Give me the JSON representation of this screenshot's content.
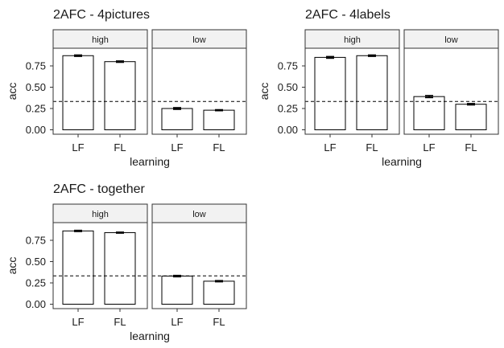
{
  "chart_data": [
    {
      "type": "bar",
      "title": "2AFC - 4pictures",
      "xlabel": "learning",
      "ylabel": "acc",
      "categories": [
        "LF",
        "FL"
      ],
      "ylim": [
        -0.02,
        1.0
      ],
      "yticks": [
        "0.00",
        "0.25",
        "0.50",
        "0.75"
      ],
      "reference_line": 0.333,
      "facets": [
        {
          "label": "high",
          "values": [
            0.87,
            0.8
          ],
          "errors": [
            0.008,
            0.008
          ]
        },
        {
          "label": "low",
          "values": [
            0.25,
            0.23
          ],
          "errors": [
            0.01,
            0.006
          ]
        }
      ]
    },
    {
      "type": "bar",
      "title": "2AFC - 4labels",
      "xlabel": "learning",
      "ylabel": "acc",
      "categories": [
        "LF",
        "FL"
      ],
      "ylim": [
        -0.02,
        1.0
      ],
      "yticks": [
        "0.00",
        "0.25",
        "0.50",
        "0.75"
      ],
      "reference_line": 0.333,
      "facets": [
        {
          "label": "high",
          "values": [
            0.85,
            0.87
          ],
          "errors": [
            0.01,
            0.008
          ]
        },
        {
          "label": "low",
          "values": [
            0.39,
            0.3
          ],
          "errors": [
            0.012,
            0.008
          ]
        }
      ]
    },
    {
      "type": "bar",
      "title": "2AFC - together",
      "xlabel": "learning",
      "ylabel": "acc",
      "categories": [
        "LF",
        "FL"
      ],
      "ylim": [
        -0.02,
        1.0
      ],
      "yticks": [
        "0.00",
        "0.25",
        "0.50",
        "0.75"
      ],
      "reference_line": 0.333,
      "facets": [
        {
          "label": "high",
          "values": [
            0.86,
            0.84
          ],
          "errors": [
            0.007,
            0.006
          ]
        },
        {
          "label": "low",
          "values": [
            0.33,
            0.27
          ],
          "errors": [
            0.008,
            0.007
          ]
        }
      ]
    }
  ]
}
